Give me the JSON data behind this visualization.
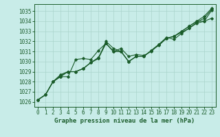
{
  "title": "Graphe pression niveau de la mer (hPa)",
  "bg_color": "#c8ece8",
  "grid_color": "#aad4cc",
  "line_color": "#1a5c2a",
  "xlim": [
    -0.5,
    23.5
  ],
  "ylim": [
    1025.5,
    1035.7
  ],
  "yticks": [
    1026,
    1027,
    1028,
    1029,
    1030,
    1031,
    1032,
    1033,
    1034,
    1035
  ],
  "xticks": [
    0,
    1,
    2,
    3,
    4,
    5,
    6,
    7,
    8,
    9,
    10,
    11,
    12,
    13,
    14,
    15,
    16,
    17,
    18,
    19,
    20,
    21,
    22,
    23
  ],
  "series": [
    [
      1026.2,
      1026.7,
      1028.0,
      1028.5,
      1028.5,
      1030.2,
      1030.3,
      1030.2,
      1031.1,
      1031.8,
      1031.0,
      1031.0,
      1030.0,
      1030.5,
      1030.5,
      1031.1,
      1031.6,
      1032.3,
      1032.5,
      1032.9,
      1033.3,
      1033.9,
      1034.3,
      1035.2
    ],
    [
      1026.2,
      1026.7,
      1028.0,
      1028.7,
      1029.0,
      1029.0,
      1029.3,
      1029.9,
      1030.4,
      1031.8,
      1031.0,
      1031.3,
      1030.5,
      1030.7,
      1030.6,
      1031.0,
      1031.7,
      1032.4,
      1032.2,
      1032.8,
      1033.3,
      1033.8,
      1034.0,
      1035.1
    ],
    [
      1026.2,
      1026.7,
      1028.0,
      1028.6,
      1029.0,
      1029.0,
      1029.3,
      1029.9,
      1030.3,
      1032.0,
      1031.3,
      1031.0,
      1030.0,
      1030.5,
      1030.5,
      1031.1,
      1031.7,
      1032.3,
      1032.5,
      1033.0,
      1033.5,
      1034.0,
      1034.5,
      1035.3
    ],
    [
      1026.2,
      1026.7,
      1028.0,
      1028.5,
      1029.0,
      1029.0,
      1029.3,
      1029.9,
      1030.3,
      1031.8,
      1031.0,
      1031.0,
      1030.0,
      1030.5,
      1030.5,
      1031.1,
      1031.7,
      1032.3,
      1032.5,
      1033.0,
      1033.5,
      1034.0,
      1034.0,
      1034.3
    ]
  ],
  "font_family": "monospace",
  "tick_fontsize": 5.5,
  "label_fontsize": 6.5
}
